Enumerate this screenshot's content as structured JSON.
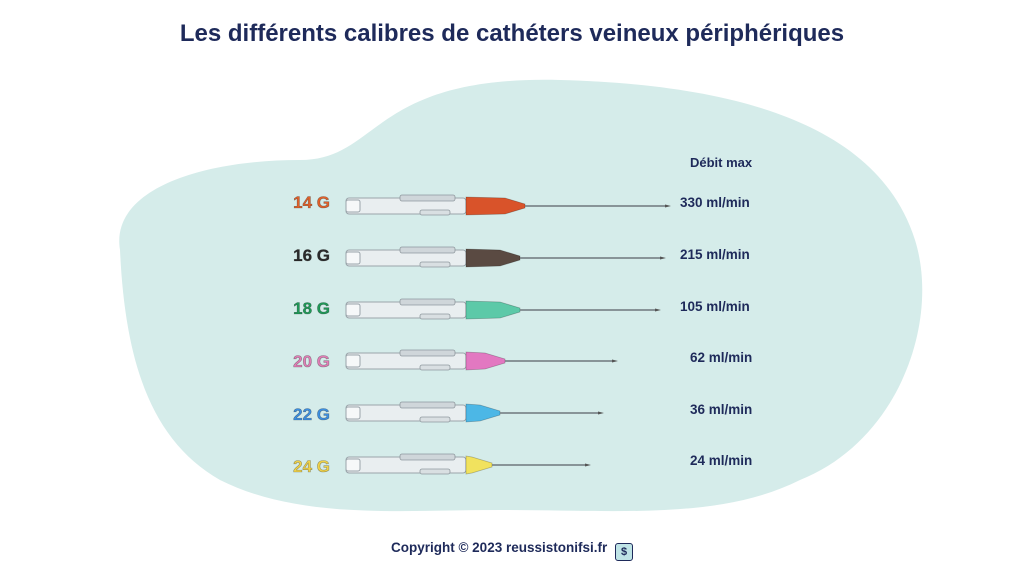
{
  "title": "Les différents calibres de cathéters veineux périphériques",
  "flow_header": "Débit max",
  "catheters": [
    {
      "gauge": "14 G",
      "flow": "330 ml/min",
      "color": "#e2612a",
      "cap": "#d9532a"
    },
    {
      "gauge": "16 G",
      "flow": "215 ml/min",
      "color": "#2b2b2b",
      "cap": "#5a4a42"
    },
    {
      "gauge": "18 G",
      "flow": "105 ml/min",
      "color": "#1f9a58",
      "cap": "#5cc9a8"
    },
    {
      "gauge": "20 G",
      "flow": "62 ml/min",
      "color": "#e07fb6",
      "cap": "#e278c1"
    },
    {
      "gauge": "22 G",
      "flow": "36 ml/min",
      "color": "#3d8fe0",
      "cap": "#4cb7e6"
    },
    {
      "gauge": "24 G",
      "flow": "24 ml/min",
      "color": "#f0d24a",
      "cap": "#f1e25e"
    }
  ],
  "footer": {
    "copyright": "Copyright © 2023 reussistonifsi.fr",
    "logo_icon": "dollar-book-icon",
    "logo_glyph": "$"
  }
}
